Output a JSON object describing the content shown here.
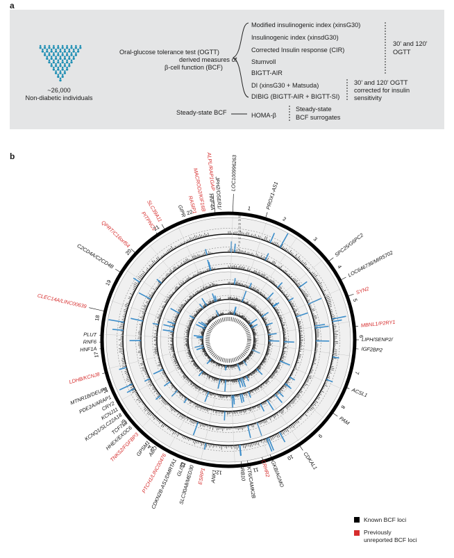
{
  "panel_a": {
    "letter": "a",
    "population_count": "~26,000",
    "population_label": "Non-diabetic individuals",
    "ogtt_label": [
      "Oral-glucose tolerance test (OGTT)",
      "derived measures of",
      "β-cell function (BCF)"
    ],
    "ogtt_measures": [
      "Modified insulinogenic index (xinsG30)",
      "Insulinogenic index (xinsdG30)",
      "Corrected Insulin response (CIR)",
      "Stumvoll",
      "BIGTT-AIR"
    ],
    "ogtt_timing": [
      "30’ and 120’",
      "OGTT"
    ],
    "corrected_measures": [
      "DI (xinsG30 + Matsuda)",
      "DIBIG (BIGTT-AIR + BIGTT-SI)"
    ],
    "corrected_timing": [
      "30’ and 120’ OGTT",
      "corrected for insulin",
      "sensitivity"
    ],
    "steady_label": "Steady-state BCF",
    "steady_measure": "HOMA-β",
    "steady_timing": [
      "Steady-state",
      "BCF surrogates"
    ]
  },
  "panel_b": {
    "letter": "b",
    "chromosomes": [
      "1",
      "2",
      "3",
      "4",
      "5",
      "6",
      "7",
      "8",
      "9",
      "10",
      "11",
      "12",
      "13",
      "14",
      "15",
      "16",
      "17",
      "18",
      "19",
      "20",
      "21",
      "22"
    ],
    "loci": [
      {
        "text": "ALPL/RAP1GAP",
        "angle": -6,
        "r": 216,
        "color": "red",
        "lines": 1
      },
      {
        "text": "LOC100996263",
        "angle": 2,
        "r": 214,
        "color": "black",
        "lines": 1
      },
      {
        "text": "PROX1-AS1",
        "angle": 17,
        "r": 196,
        "color": "black",
        "lines": 1
      },
      {
        "text": "SPC25/G6PC2",
        "angle": 52,
        "r": 196,
        "color": "black",
        "lines": 1
      },
      {
        "text": "LOC646736/MIR5702",
        "angle": 62,
        "r": 196,
        "color": "black",
        "lines": 1
      },
      {
        "text": "SYN2",
        "angle": 70,
        "r": 196,
        "color": "red",
        "lines": 1
      },
      {
        "text": "MBNL1/P2RY1",
        "angle": 84,
        "r": 192,
        "color": "red",
        "lines": 1
      },
      {
        "text": "LIPH/SENP2/",
        "angle": 90,
        "r": 192,
        "color": "black",
        "lines": 1
      },
      {
        "text": "IGF2BP2",
        "angle": 94,
        "r": 192,
        "color": "black",
        "lines": 1
      },
      {
        "text": "ACSL1",
        "angle": 112,
        "r": 192,
        "color": "black",
        "lines": 1
      },
      {
        "text": "PAM",
        "angle": 125,
        "r": 196,
        "color": "black",
        "lines": 1
      },
      {
        "text": "CDKAL1",
        "angle": 146,
        "r": 196,
        "color": "black",
        "lines": 1
      },
      {
        "text": "DGKB/AGMO",
        "angle": 160,
        "r": 180,
        "color": "black",
        "lines": 1
      },
      {
        "text": "CRHR2",
        "angle": 164,
        "r": 180,
        "color": "red",
        "lines": 1
      },
      {
        "text": "YKT6/CAMK2B",
        "angle": 171,
        "r": 180,
        "color": "black",
        "lines": 1
      },
      {
        "text": "GRB10",
        "angle": 174,
        "r": 180,
        "color": "black",
        "lines": 1
      },
      {
        "text": "ANK1",
        "angle": 186,
        "r": 188,
        "color": "black",
        "lines": 1
      },
      {
        "text": "ESRP1",
        "angle": 191,
        "r": 188,
        "color": "red",
        "lines": 1
      },
      {
        "text": "SLC30A8/MED30",
        "angle": 196,
        "r": 188,
        "color": "black",
        "lines": 1
      },
      {
        "text": "GLIS3",
        "angle": 200,
        "r": 188,
        "color": "black",
        "lines": 1
      },
      {
        "text": "CDKN2B-AS1/DMRTA1",
        "angle": 204,
        "r": 188,
        "color": "black",
        "lines": 1
      },
      {
        "text": "PTCH1/LINC00476",
        "angle": 209,
        "r": 188,
        "color": "red",
        "lines": 1
      },
      {
        "text": "ABO",
        "angle": 214,
        "r": 186,
        "color": "black",
        "lines": 1
      },
      {
        "text": "GPSM1",
        "angle": 218,
        "r": 186,
        "color": "black",
        "lines": 1
      },
      {
        "text": "TNKS2/FGFBP3",
        "angle": 224,
        "r": 188,
        "color": "red",
        "lines": 1
      },
      {
        "text": "HHEX/EXOC6",
        "angle": 228,
        "r": 188,
        "color": "black",
        "lines": 1
      },
      {
        "text": "TCF7L2",
        "angle": 231,
        "r": 188,
        "color": "black",
        "lines": 1
      },
      {
        "text": "KCNQ1/SLC22A18",
        "angle": 235,
        "r": 188,
        "color": "black",
        "lines": 1
      },
      {
        "text": "KCNJ11",
        "angle": 238,
        "r": 188,
        "color": "black",
        "lines": 1
      },
      {
        "text": "CRY2",
        "angle": 241,
        "r": 188,
        "color": "black",
        "lines": 1
      },
      {
        "text": "PDE2A/ARAP1",
        "angle": 244,
        "r": 188,
        "color": "black",
        "lines": 1
      },
      {
        "text": "MTNR1B/DEUP1",
        "angle": 248,
        "r": 188,
        "color": "black",
        "lines": 1
      },
      {
        "text": "LDHB/KCNJ8",
        "angle": 255,
        "r": 192,
        "color": "red",
        "lines": 1
      },
      {
        "text": "HNF1A",
        "angle": 266,
        "r": 190,
        "color": "black",
        "lines": 1
      },
      {
        "text": "RNF6",
        "angle": 269,
        "r": 190,
        "color": "black",
        "lines": 1
      },
      {
        "text": "PLUT",
        "angle": 272,
        "r": 190,
        "color": "black",
        "lines": 1
      },
      {
        "text": "CLEC14A/LINC00639",
        "angle": 283,
        "r": 210,
        "color": "red",
        "lines": 1
      },
      {
        "text": "C2CD4A/C2CD4B",
        "angle": 302,
        "r": 196,
        "color": "black",
        "lines": 1
      },
      {
        "text": "QPRT/C16orf54",
        "angle": 313,
        "r": 196,
        "color": "red",
        "lines": 1
      },
      {
        "text": "PITPNC1",
        "angle": 326,
        "r": 190,
        "color": "red",
        "lines": 1
      },
      {
        "text": "SLC39A11",
        "angle": 330,
        "r": 196,
        "color": "red",
        "lines": 1
      },
      {
        "text": "GIPR",
        "angle": 340,
        "r": 188,
        "color": "black",
        "lines": 1
      },
      {
        "text": "RASIP1",
        "angle": 345,
        "r": 188,
        "color": "red",
        "lines": 1
      },
      {
        "text": "MACROD2/KIF16B",
        "angle": 349,
        "r": 188,
        "color": "red",
        "lines": 1
      },
      {
        "text": "HNF4A",
        "angle": 353,
        "r": 188,
        "color": "black",
        "lines": 1
      },
      {
        "text": "JPH2/OSER1/",
        "angle": 356,
        "r": 188,
        "color": "black",
        "lines": 1
      }
    ],
    "legend": {
      "known": "Known BCF loci",
      "novel": [
        "Previously",
        "unreported BCF loci"
      ],
      "known_color": "#000000",
      "novel_color": "#d62d2d"
    },
    "ring_tick_labels": [
      "32",
      "29",
      "26",
      "23",
      "20",
      "17",
      "14",
      "11",
      "8",
      "5",
      "2"
    ],
    "colors": {
      "peak": "#3a8cc9",
      "red": "#d62d2d",
      "ring_bg": "#f0f0f0"
    }
  }
}
